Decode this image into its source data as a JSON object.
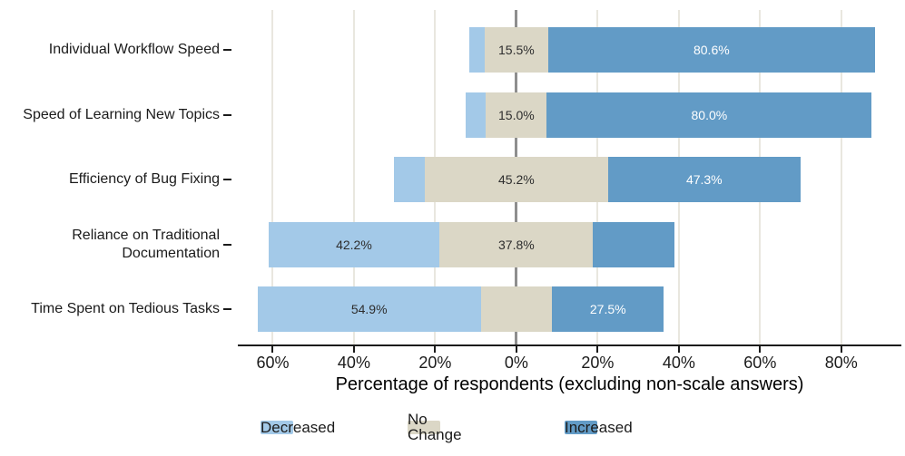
{
  "figure": {
    "background": "#ffffff",
    "text_color": "#1b1b1b",
    "axis_color": "#1b1b1b",
    "gridline_color": "#e9e7df",
    "zero_line_color": "#8e8e8e"
  },
  "chart_data": {
    "type": "bar",
    "subtype": "diverging_stacked_bar",
    "orientation": "horizontal",
    "categories": [
      "Individual Workflow Speed",
      "Speed of Learning New Topics",
      "Efficiency of Bug Fixing",
      "Reliance on Traditional Documentation",
      "Time Spent on Tedious Tasks"
    ],
    "series": [
      {
        "name": "Decreased",
        "color": "#a3c9e8",
        "label_color": "#2e2e2e",
        "values": [
          3.9,
          5.0,
          7.5,
          42.2,
          54.9
        ],
        "labels": [
          "",
          "",
          "",
          "42.2%",
          "54.9%"
        ]
      },
      {
        "name": "No Change",
        "color": "#dbd7c6",
        "label_color": "#2e2e2e",
        "values": [
          15.5,
          15.0,
          45.2,
          37.8,
          17.6
        ],
        "labels": [
          "15.5%",
          "15.0%",
          "45.2%",
          "37.8%",
          ""
        ]
      },
      {
        "name": "Increased",
        "color": "#629bc6",
        "label_color": "#ffffff",
        "values": [
          80.6,
          80.0,
          47.3,
          20.0,
          27.5
        ],
        "labels": [
          "80.6%",
          "80.0%",
          "47.3%",
          "",
          "27.5%"
        ]
      }
    ],
    "alignment": "no-change band centered on 0%",
    "xlabel": "Percentage of respondents (excluding non-scale answers)",
    "xlim": [
      -68.6,
      94.8
    ],
    "xticks": [
      -60,
      -40,
      -20,
      0,
      20,
      40,
      60,
      80
    ],
    "xtick_labels": [
      "60%",
      "40%",
      "20%",
      "0%",
      "20%",
      "40%",
      "60%",
      "80%"
    ],
    "grid": "vertical lines at ticks, zero line emphasized",
    "zero_line": true,
    "legend": {
      "position": "bottom",
      "entries": [
        "Decreased",
        "No Change",
        "Increased"
      ]
    }
  }
}
